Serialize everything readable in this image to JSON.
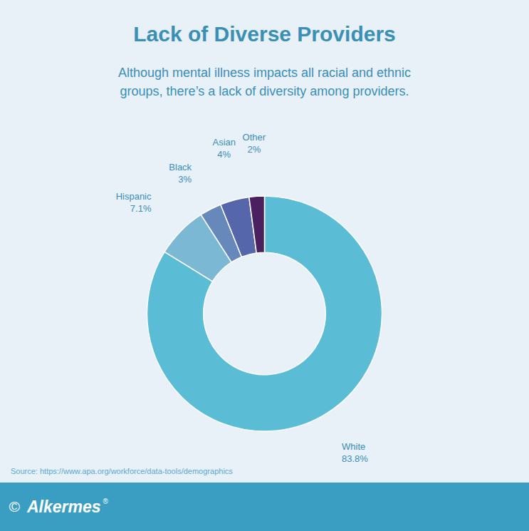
{
  "chart_data": {
    "type": "pie",
    "title": "Lack of Diverse Providers",
    "subtitle": "Although mental illness impacts all racial and ethnic\ngroups, there’s a lack of diversity among providers.",
    "source": "Source: https://www.apa.org/workforce/data-tools/demographics",
    "annotations": [
      "©",
      "Alkermes",
      "®"
    ],
    "categories": [
      "White",
      "Hispanic",
      "Black",
      "Asian",
      "Other"
    ],
    "values": [
      83.8,
      7.1,
      3.0,
      4.0,
      2.1
    ],
    "value_labels": [
      "83.8%",
      "7.1%",
      "3%",
      "4%",
      "2%"
    ],
    "colors": [
      "#5bbcd6",
      "#7ab8d4",
      "#6688bb",
      "#5566aa",
      "#4a2060"
    ],
    "data_labels": true
  }
}
